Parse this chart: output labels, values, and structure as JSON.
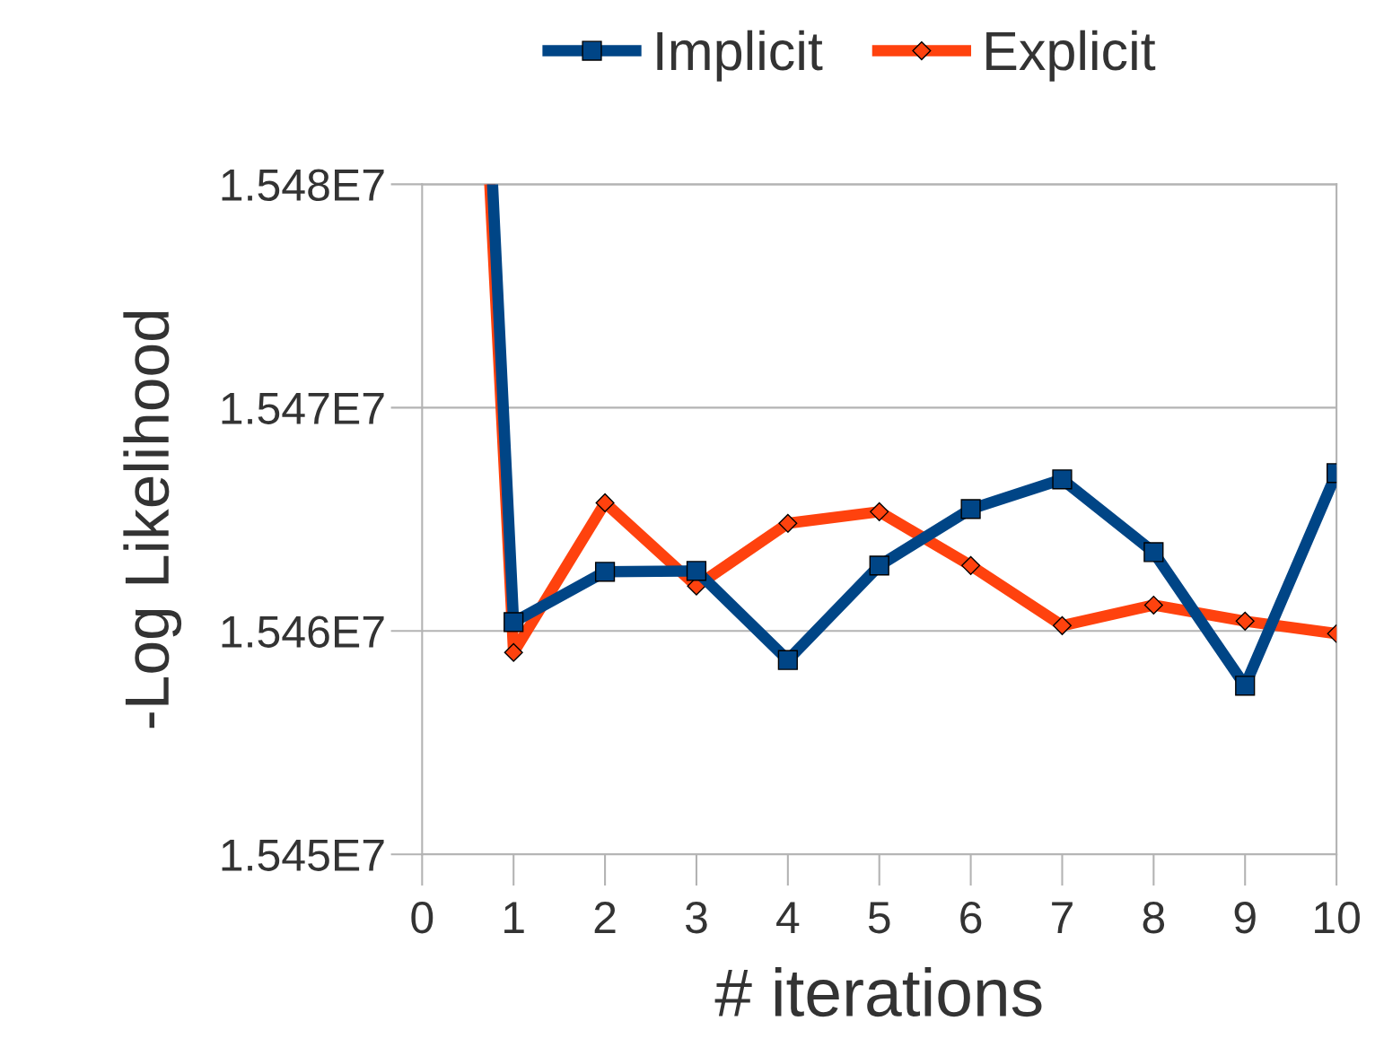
{
  "chart_data": {
    "type": "line",
    "xlabel": "# iterations",
    "ylabel": "-Log Likelihood",
    "series": [
      {
        "name": "Implicit",
        "color": "#004586",
        "marker": "square",
        "x": [
          0.77,
          1,
          2,
          3,
          4,
          5,
          6,
          7,
          8,
          9,
          10
        ],
        "values": [
          15480000,
          15460400,
          15462650,
          15462690,
          15458700,
          15462930,
          15465460,
          15466790,
          15463530,
          15457550,
          15467070
        ]
      },
      {
        "name": "Explicit",
        "color": "#ff420e",
        "marker": "diamond",
        "x": [
          0.74,
          1,
          2,
          3,
          4,
          5,
          6,
          7,
          8,
          9,
          10
        ],
        "values": [
          15480000,
          15459040,
          15465740,
          15462010,
          15464820,
          15465340,
          15462930,
          15460240,
          15461160,
          15460440,
          15459880
        ]
      }
    ],
    "xlim": [
      0,
      10
    ],
    "xticks": [
      0,
      1,
      2,
      3,
      4,
      5,
      6,
      7,
      8,
      9,
      10
    ],
    "ylim": [
      15450000,
      15480000
    ],
    "yticks": [
      {
        "value": 15450000,
        "label": "1.545E7"
      },
      {
        "value": 15460000,
        "label": "1.546E7"
      },
      {
        "value": 15470000,
        "label": "1.547E7"
      },
      {
        "value": 15480000,
        "label": "1.548E7"
      }
    ],
    "grid": "y",
    "legend": "top",
    "line_style": "solid"
  }
}
